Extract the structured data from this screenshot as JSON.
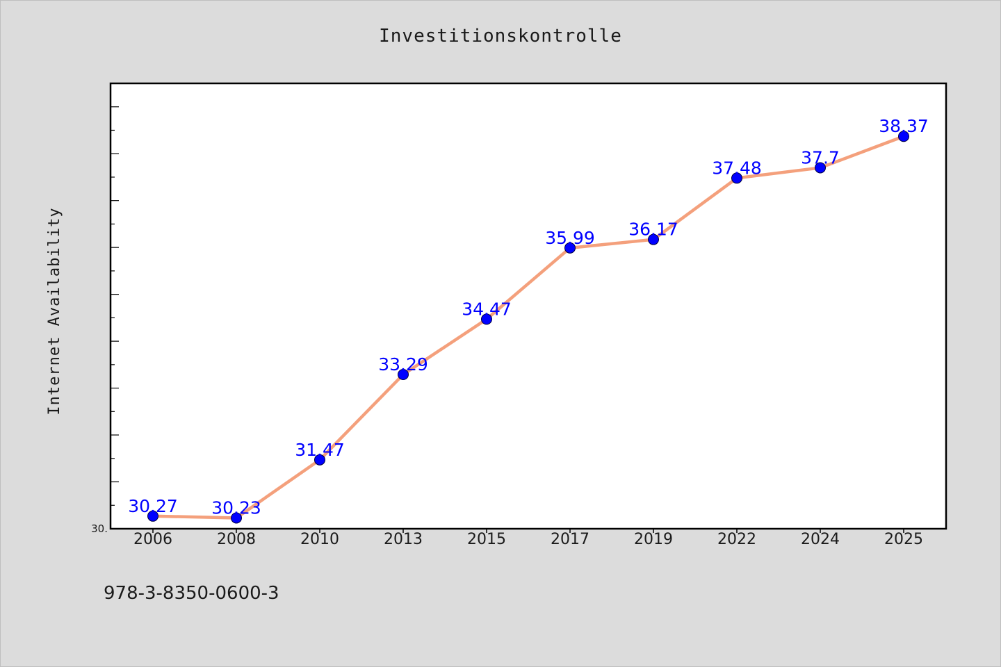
{
  "chart_data": {
    "type": "line",
    "title": "Investitionskontrolle",
    "xlabel": "",
    "ylabel": "Internet Availability",
    "categories": [
      "2006",
      "2008",
      "2010",
      "2013",
      "2015",
      "2017",
      "2019",
      "2022",
      "2024",
      "2025"
    ],
    "series": [
      {
        "values": [
          30.27,
          30.23,
          31.47,
          33.29,
          34.47,
          35.99,
          36.17,
          37.48,
          37.7,
          38.37
        ],
        "labels": [
          "30.27",
          "30.23",
          "31.47",
          "33.29",
          "34.47",
          "35.99",
          "36.17",
          "37.48",
          "37.7",
          "38.37"
        ]
      }
    ],
    "yticks": [
      {
        "value": 30.0,
        "label": "30."
      }
    ],
    "ylim": [
      30.0,
      39.5
    ],
    "grid": false,
    "line_color": "#f4a07c",
    "marker_color": "#0000ff",
    "label_color": "#0000ff"
  },
  "footnote": "978-3-8350-0600-3"
}
